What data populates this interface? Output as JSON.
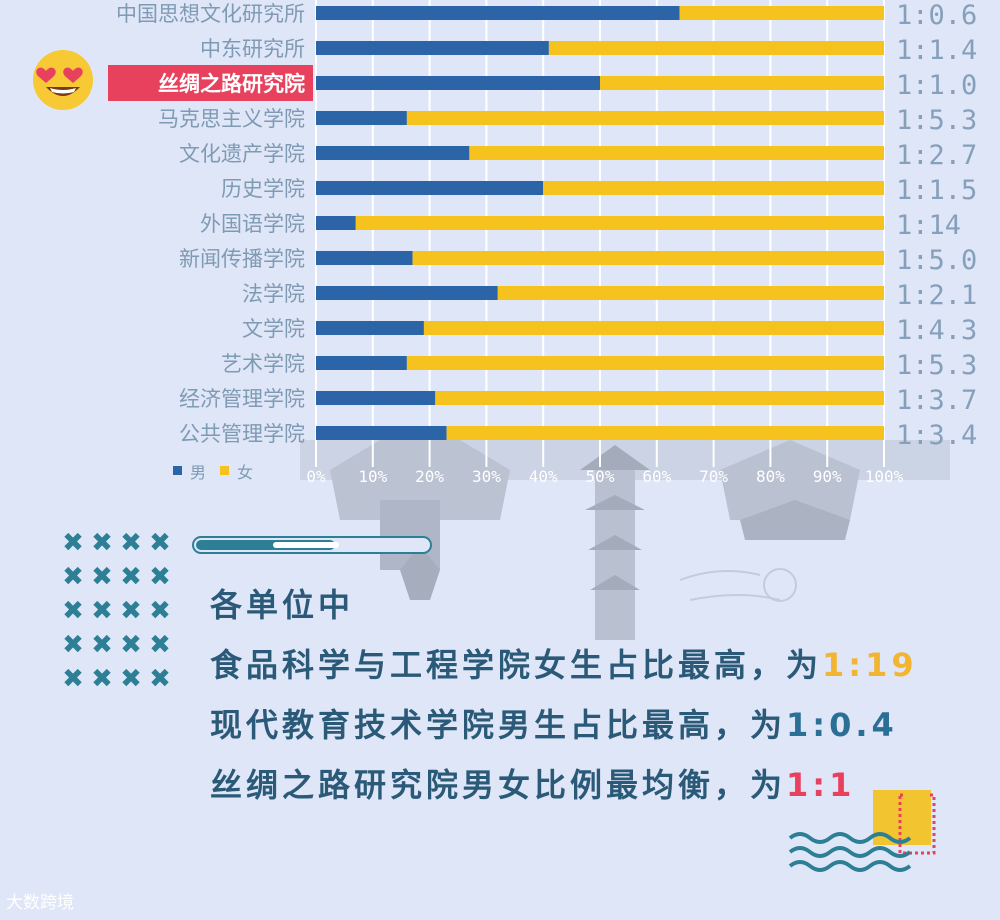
{
  "chart_data": {
    "type": "bar",
    "stacked": true,
    "orientation": "horizontal",
    "categories": [
      "中国思想文化研究所",
      "中东研究所",
      "丝绸之路研究院",
      "马克思主义学院",
      "文化遗产学院",
      "历史学院",
      "外国语学院",
      "新闻传播学院",
      "法学院",
      "文学院",
      "艺术学院",
      "经济管理学院",
      "公共管理学院"
    ],
    "series": [
      {
        "name": "男",
        "color": "#2b65a8",
        "values": [
          64,
          41,
          50,
          16,
          27,
          40,
          7,
          17,
          32,
          19,
          16,
          21,
          23
        ]
      },
      {
        "name": "女",
        "color": "#f6c21d",
        "values": [
          36,
          59,
          50,
          84,
          73,
          60,
          93,
          83,
          68,
          81,
          84,
          79,
          77
        ]
      }
    ],
    "ratios": [
      "1:0.6",
      "1:1.4",
      "1:1.0",
      "1:5.3",
      "1:2.7",
      "1:1.5",
      "1:14",
      "1:5.0",
      "1:2.1",
      "1:4.3",
      "1:5.3",
      "1:3.7",
      "1:3.4"
    ],
    "highlight_category": "丝绸之路研究院",
    "xlim": [
      0,
      100
    ],
    "xticks": [
      "0%",
      "10%",
      "20%",
      "30%",
      "40%",
      "50%",
      "60%",
      "70%",
      "80%",
      "90%",
      "100%"
    ],
    "legend": {
      "placement": "bottom-left",
      "male": "男",
      "female": "女"
    },
    "grid": true
  },
  "summary": {
    "line1": "各单位中",
    "line2_text": "食品科学与工程学院女生占比最高，为",
    "line2_value": "1:19",
    "line3_text": "现代教育技术学院男生占比最高，为",
    "line3_value": "1:0.4",
    "line4_text": "丝绸之路研究院男女比例最均衡，为",
    "line4_value": "1:1"
  },
  "progress_level": 0.6,
  "watermark": "大数跨境",
  "colors": {
    "background": "#dfe6f8",
    "male": "#2b65a8",
    "female": "#f6c21d",
    "highlight": "#e8415d",
    "text_blue": "#2b5a78",
    "accent_teal": "#2d7f95"
  },
  "icons": [
    "heart-eyes-emoji-icon",
    "cross-pattern-icon",
    "wave-decoration-icon",
    "architecture-silhouette"
  ]
}
